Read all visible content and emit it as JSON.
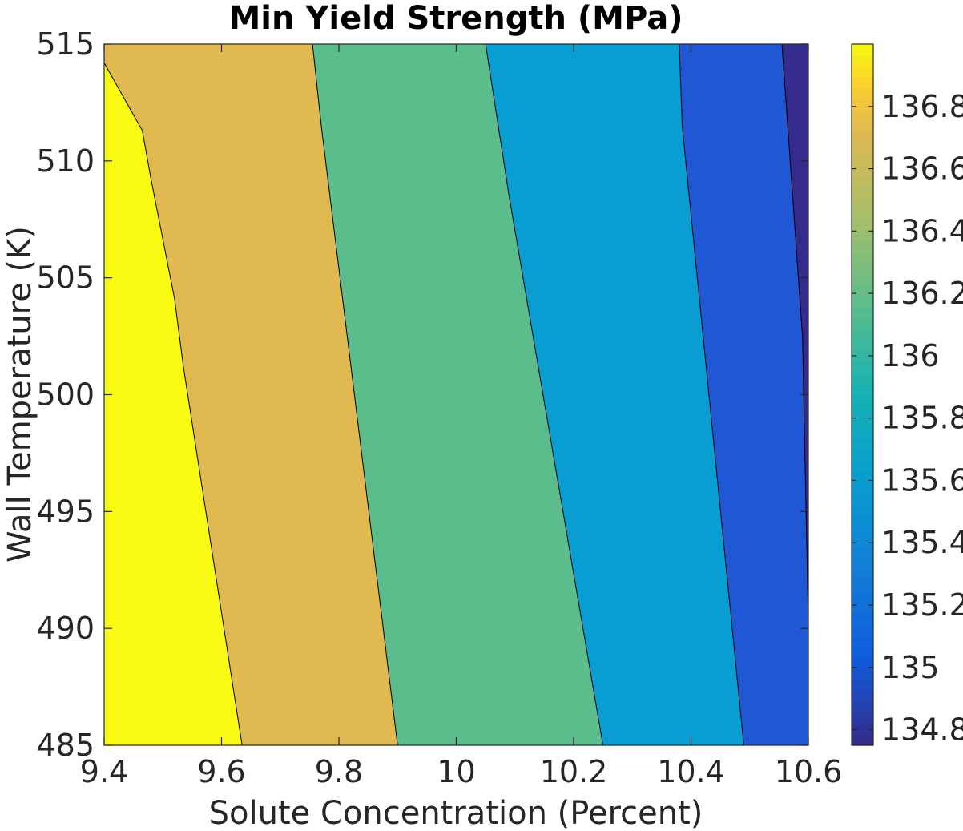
{
  "chart_data": {
    "type": "contour",
    "title": "Min Yield Strength (MPa)",
    "xlabel": "Solute Concentration (Percent)",
    "ylabel": "Wall Temperature (K)",
    "xlim": [
      9.4,
      10.6
    ],
    "ylim": [
      485,
      515
    ],
    "xticks": [
      9.4,
      9.6,
      9.8,
      10,
      10.2,
      10.4,
      10.6
    ],
    "xtick_labels": [
      "9.4",
      "9.6",
      "9.8",
      "10",
      "10.2",
      "10.4",
      "10.6"
    ],
    "yticks": [
      485,
      490,
      495,
      500,
      505,
      510,
      515
    ],
    "ytick_labels": [
      "485",
      "490",
      "495",
      "500",
      "505",
      "510",
      "515"
    ],
    "grid": false,
    "colormap": "parula",
    "colorbar": {
      "range": [
        134.75,
        137.0
      ],
      "ticks": [
        134.8,
        135,
        135.2,
        135.4,
        135.6,
        135.8,
        136,
        136.2,
        136.4,
        136.6,
        136.8
      ],
      "tick_labels": [
        "134.8",
        "135",
        "135.2",
        "135.4",
        "135.6",
        "135.8",
        "136",
        "136.2",
        "136.4",
        "136.6",
        "136.8"
      ]
    },
    "contour_lines": [
      {
        "level": 136.6,
        "points": [
          [
            9.4,
            514.2
          ],
          [
            9.465,
            511.3
          ],
          [
            9.48,
            509.2
          ],
          [
            9.52,
            504.1
          ],
          [
            9.535,
            501.2
          ],
          [
            9.635,
            485
          ]
        ]
      },
      {
        "level": 136.1,
        "points": [
          [
            9.755,
            515
          ],
          [
            9.77,
            511.5
          ],
          [
            9.9,
            485
          ]
        ]
      },
      {
        "level": 135.7,
        "points": [
          [
            10.05,
            515
          ],
          [
            10.09,
            508.5
          ],
          [
            10.25,
            485
          ]
        ]
      },
      {
        "level": 135.2,
        "points": [
          [
            10.38,
            515
          ],
          [
            10.385,
            511.5
          ],
          [
            10.49,
            485
          ]
        ]
      },
      {
        "level": 134.9,
        "points": [
          [
            10.555,
            515
          ],
          [
            10.59,
            502.5
          ],
          [
            10.6,
            490.2
          ]
        ]
      }
    ],
    "fill_colors": [
      "#f9fa14",
      "#e1b951",
      "#5bbd8b",
      "#0a9dd2",
      "#1f57d4",
      "#342b8c"
    ]
  }
}
